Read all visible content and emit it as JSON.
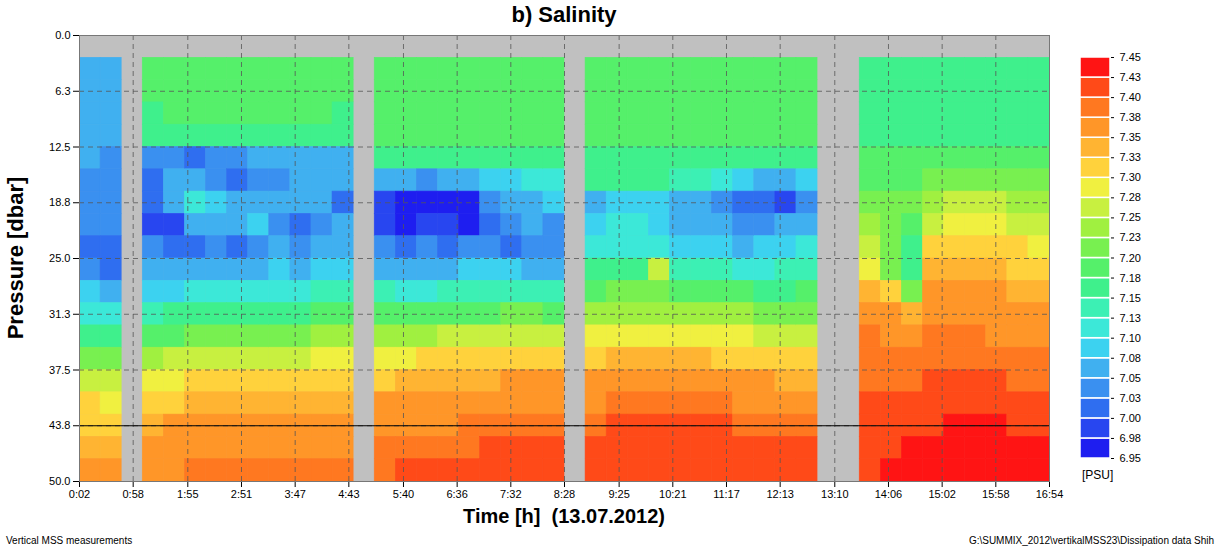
{
  "chart_data": {
    "type": "heatmap",
    "title": "b) Salinity",
    "x_label": "Time [h]  (13.07.2012)",
    "y_label": "Pressure [dbar]",
    "xlim": [
      2,
      1014
    ],
    "xticks": [
      {
        "value": 2,
        "label": "0:02"
      },
      {
        "value": 58,
        "label": "0:58"
      },
      {
        "value": 115,
        "label": "1:55"
      },
      {
        "value": 171,
        "label": "2:51"
      },
      {
        "value": 227,
        "label": "3:47"
      },
      {
        "value": 283,
        "label": "4:43"
      },
      {
        "value": 340,
        "label": "5:40"
      },
      {
        "value": 396,
        "label": "6:36"
      },
      {
        "value": 452,
        "label": "7:32"
      },
      {
        "value": 508,
        "label": "8:28"
      },
      {
        "value": 565,
        "label": "9:25"
      },
      {
        "value": 621,
        "label": "10:21"
      },
      {
        "value": 677,
        "label": "11:17"
      },
      {
        "value": 733,
        "label": "12:13"
      },
      {
        "value": 790,
        "label": "13:10"
      },
      {
        "value": 846,
        "label": "14:06"
      },
      {
        "value": 902,
        "label": "15:02"
      },
      {
        "value": 958,
        "label": "15:58"
      },
      {
        "value": 1014,
        "label": "16:54"
      }
    ],
    "ylim": [
      0,
      50
    ],
    "yticks": [
      {
        "value": 0,
        "label": "0.0"
      },
      {
        "value": 6.25,
        "label": "6.3"
      },
      12.5,
      {
        "value": 18.75,
        "label": "18.8"
      },
      {
        "value": 25,
        "label": "25.0"
      },
      {
        "value": 31.25,
        "label": "31.3"
      },
      37.5,
      {
        "value": 43.75,
        "label": "43.8"
      },
      {
        "value": 50,
        "label": "50.0"
      }
    ],
    "grid": true,
    "reference_line": 43.75,
    "cells": {
      "x_edges": [
        2,
        24,
        46,
        68,
        90,
        112,
        134,
        156,
        178,
        200,
        222,
        244,
        266,
        288,
        310,
        332,
        354,
        376,
        398,
        420,
        442,
        464,
        486,
        508,
        530,
        552,
        574,
        596,
        618,
        640,
        662,
        684,
        706,
        728,
        750,
        772,
        794,
        816,
        838,
        860,
        882,
        904,
        926,
        948,
        970,
        992,
        1014
      ],
      "y_edges": [
        2.5,
        5,
        7.5,
        10,
        12.5,
        15,
        17.5,
        20,
        22.5,
        25,
        27.5,
        30,
        32.5,
        35,
        37.5,
        40,
        42.5,
        45,
        47.5,
        50
      ],
      "values": [
        [
          7.07,
          7.07,
          7.07,
          7.06,
          7.05,
          7.04,
          7.04,
          7.03,
          7.02,
          7.03,
          7.08,
          7.12,
          7.16,
          7.22,
          7.27,
          7.3,
          7.32,
          7.34,
          7.36
        ],
        [
          7.06,
          7.06,
          7.06,
          7.05,
          7.04,
          7.03,
          7.04,
          7.03,
          7.01,
          7.0,
          7.06,
          7.11,
          7.15,
          7.21,
          7.26,
          7.29,
          7.31,
          7.33,
          7.35
        ],
        null,
        [
          7.18,
          7.18,
          7.17,
          7.15,
          7.04,
          7.02,
          7.0,
          6.98,
          7.03,
          7.06,
          7.09,
          7.14,
          7.19,
          7.24,
          7.29,
          7.32,
          7.34,
          7.36,
          7.37
        ],
        [
          7.18,
          7.18,
          7.18,
          7.16,
          7.03,
          7.06,
          7.07,
          6.99,
          7.02,
          7.05,
          7.09,
          7.15,
          7.19,
          7.25,
          7.29,
          7.32,
          7.35,
          7.36,
          7.37
        ],
        [
          7.19,
          7.18,
          7.18,
          7.16,
          7.02,
          7.05,
          7.1,
          7.05,
          7.02,
          7.06,
          7.1,
          7.15,
          7.2,
          7.26,
          7.3,
          7.33,
          7.35,
          7.36,
          7.38
        ],
        [
          7.19,
          7.19,
          7.18,
          7.17,
          7.03,
          7.03,
          7.08,
          7.06,
          7.03,
          7.07,
          7.11,
          7.16,
          7.21,
          7.26,
          7.3,
          7.33,
          7.35,
          7.37,
          7.38
        ],
        [
          7.19,
          7.19,
          7.18,
          7.17,
          7.04,
          7.02,
          7.06,
          7.05,
          7.02,
          7.06,
          7.11,
          7.16,
          7.21,
          7.26,
          7.3,
          7.33,
          7.35,
          7.37,
          7.38
        ],
        [
          7.19,
          7.18,
          7.18,
          7.16,
          7.05,
          7.03,
          7.07,
          7.08,
          7.04,
          7.07,
          7.12,
          7.17,
          7.21,
          7.27,
          7.31,
          7.33,
          7.35,
          7.37,
          7.38
        ],
        [
          7.19,
          7.19,
          7.18,
          7.17,
          7.06,
          7.04,
          7.06,
          7.03,
          7.05,
          7.08,
          7.12,
          7.17,
          7.22,
          7.27,
          7.31,
          7.34,
          7.35,
          7.37,
          7.38
        ],
        [
          7.19,
          7.19,
          7.18,
          7.17,
          7.06,
          7.05,
          7.07,
          7.0,
          7.03,
          7.07,
          7.12,
          7.17,
          7.22,
          7.27,
          7.31,
          7.34,
          7.36,
          7.37,
          7.38
        ],
        [
          7.18,
          7.18,
          7.18,
          7.16,
          7.06,
          7.06,
          7.05,
          7.04,
          7.05,
          7.08,
          7.13,
          7.18,
          7.23,
          7.28,
          7.31,
          7.34,
          7.36,
          7.37,
          7.38
        ],
        [
          7.18,
          7.18,
          7.17,
          7.16,
          7.07,
          7.05,
          7.02,
          7.05,
          7.06,
          7.09,
          7.13,
          7.18,
          7.23,
          7.28,
          7.32,
          7.34,
          7.36,
          7.37,
          7.38
        ],
        null,
        [
          7.19,
          7.19,
          7.19,
          7.18,
          7.16,
          7.06,
          6.98,
          6.99,
          7.03,
          7.07,
          7.13,
          7.18,
          7.24,
          7.29,
          7.32,
          7.35,
          7.36,
          7.38,
          7.39
        ],
        [
          7.19,
          7.19,
          7.19,
          7.18,
          7.15,
          7.05,
          6.97,
          6.97,
          7.02,
          7.06,
          7.12,
          7.18,
          7.24,
          7.29,
          7.33,
          7.35,
          7.37,
          7.38,
          7.4
        ],
        [
          7.19,
          7.19,
          7.19,
          7.18,
          7.15,
          7.04,
          6.96,
          6.98,
          7.03,
          7.06,
          7.12,
          7.18,
          7.24,
          7.3,
          7.33,
          7.35,
          7.37,
          7.39,
          7.4
        ],
        [
          7.19,
          7.19,
          7.19,
          7.18,
          7.16,
          7.05,
          6.97,
          6.99,
          7.02,
          7.07,
          7.13,
          7.19,
          7.25,
          7.3,
          7.33,
          7.36,
          7.37,
          7.39,
          7.41
        ],
        [
          7.19,
          7.19,
          7.19,
          7.18,
          7.16,
          7.06,
          6.96,
          6.97,
          7.04,
          7.08,
          7.14,
          7.19,
          7.25,
          7.3,
          7.34,
          7.36,
          7.38,
          7.39,
          7.41
        ],
        [
          7.19,
          7.19,
          7.19,
          7.18,
          7.17,
          7.08,
          7.04,
          7.02,
          7.04,
          7.08,
          7.14,
          7.19,
          7.25,
          7.3,
          7.34,
          7.36,
          7.38,
          7.4,
          7.41
        ],
        [
          7.19,
          7.19,
          7.19,
          7.18,
          7.17,
          7.09,
          7.06,
          7.03,
          7.02,
          7.08,
          7.14,
          7.2,
          7.26,
          7.31,
          7.35,
          7.37,
          7.38,
          7.4,
          7.41
        ],
        [
          7.19,
          7.19,
          7.19,
          7.18,
          7.17,
          7.1,
          7.07,
          7.05,
          7.04,
          7.07,
          7.14,
          7.2,
          7.26,
          7.31,
          7.35,
          7.37,
          7.39,
          7.4,
          7.42
        ],
        [
          7.19,
          7.19,
          7.19,
          7.18,
          7.17,
          7.1,
          7.08,
          7.04,
          7.03,
          7.06,
          7.13,
          7.19,
          7.25,
          7.31,
          7.35,
          7.37,
          7.39,
          7.41,
          7.42
        ],
        null,
        [
          7.18,
          7.18,
          7.18,
          7.18,
          7.17,
          7.16,
          7.06,
          7.09,
          7.12,
          7.15,
          7.19,
          7.23,
          7.28,
          7.32,
          7.35,
          7.37,
          7.39,
          7.41,
          7.42
        ],
        [
          7.18,
          7.18,
          7.18,
          7.18,
          7.17,
          7.16,
          7.08,
          7.1,
          7.12,
          7.16,
          7.2,
          7.24,
          7.29,
          7.33,
          7.36,
          7.38,
          7.4,
          7.41,
          7.42
        ],
        [
          7.18,
          7.18,
          7.18,
          7.18,
          7.17,
          7.15,
          7.09,
          7.1,
          7.12,
          7.16,
          7.2,
          7.24,
          7.29,
          7.33,
          7.36,
          7.38,
          7.4,
          7.41,
          7.42
        ],
        [
          7.18,
          7.18,
          7.18,
          7.18,
          7.17,
          7.15,
          7.08,
          7.08,
          7.1,
          7.25,
          7.22,
          7.24,
          7.29,
          7.33,
          7.36,
          7.38,
          7.4,
          7.41,
          7.42
        ],
        [
          7.18,
          7.18,
          7.18,
          7.18,
          7.17,
          7.14,
          7.07,
          7.06,
          7.09,
          7.14,
          7.19,
          7.24,
          7.29,
          7.33,
          7.36,
          7.38,
          7.4,
          7.41,
          7.42
        ],
        [
          7.18,
          7.18,
          7.18,
          7.18,
          7.17,
          7.13,
          7.06,
          7.05,
          7.08,
          7.13,
          7.19,
          7.24,
          7.29,
          7.33,
          7.36,
          7.38,
          7.4,
          7.41,
          7.42
        ],
        [
          7.18,
          7.18,
          7.18,
          7.18,
          7.16,
          7.1,
          7.03,
          7.05,
          7.08,
          7.13,
          7.18,
          7.23,
          7.28,
          7.32,
          7.35,
          7.38,
          7.4,
          7.41,
          7.42
        ],
        [
          7.18,
          7.18,
          7.18,
          7.18,
          7.16,
          7.08,
          7.0,
          7.04,
          7.07,
          7.12,
          7.18,
          7.23,
          7.28,
          7.32,
          7.35,
          7.37,
          7.39,
          7.41,
          7.42
        ],
        [
          7.18,
          7.18,
          7.18,
          7.18,
          7.16,
          7.07,
          7.01,
          7.04,
          7.08,
          7.12,
          7.17,
          7.22,
          7.27,
          7.31,
          7.35,
          7.37,
          7.39,
          7.4,
          7.41
        ],
        [
          7.18,
          7.18,
          7.18,
          7.18,
          7.15,
          7.05,
          6.99,
          7.05,
          7.09,
          7.13,
          7.17,
          7.22,
          7.27,
          7.31,
          7.34,
          7.37,
          7.39,
          7.4,
          7.41
        ],
        [
          7.18,
          7.18,
          7.18,
          7.18,
          7.16,
          7.08,
          7.04,
          7.07,
          7.1,
          7.14,
          7.18,
          7.22,
          7.27,
          7.31,
          7.34,
          7.36,
          7.38,
          7.4,
          7.41
        ],
        null,
        null,
        [
          7.17,
          7.17,
          7.17,
          7.17,
          7.18,
          7.19,
          7.21,
          7.23,
          7.25,
          7.28,
          7.33,
          7.36,
          7.38,
          7.39,
          7.39,
          7.4,
          7.41,
          7.42,
          7.42
        ],
        [
          7.17,
          7.17,
          7.17,
          7.17,
          7.18,
          7.19,
          7.21,
          7.22,
          7.21,
          7.21,
          7.3,
          7.35,
          7.37,
          7.38,
          7.39,
          7.4,
          7.41,
          7.42,
          7.43
        ],
        [
          7.17,
          7.17,
          7.17,
          7.17,
          7.18,
          7.19,
          7.2,
          7.19,
          7.17,
          7.15,
          7.2,
          7.34,
          7.37,
          7.38,
          7.39,
          7.41,
          7.42,
          7.43,
          7.43
        ],
        [
          7.16,
          7.16,
          7.16,
          7.17,
          7.18,
          7.2,
          7.23,
          7.27,
          7.3,
          7.33,
          7.35,
          7.37,
          7.38,
          7.39,
          7.4,
          7.41,
          7.42,
          7.43,
          7.44
        ],
        [
          7.15,
          7.16,
          7.16,
          7.17,
          7.18,
          7.21,
          7.25,
          7.28,
          7.32,
          7.34,
          7.36,
          7.37,
          7.38,
          7.39,
          7.4,
          7.42,
          7.43,
          7.44,
          7.45
        ],
        [
          7.16,
          7.16,
          7.17,
          7.17,
          7.19,
          7.22,
          7.26,
          7.29,
          7.32,
          7.34,
          7.36,
          7.37,
          7.38,
          7.39,
          7.4,
          7.42,
          7.43,
          7.44,
          7.44
        ],
        [
          7.16,
          7.16,
          7.17,
          7.17,
          7.19,
          7.22,
          7.25,
          7.28,
          7.31,
          7.33,
          7.35,
          7.36,
          7.37,
          7.38,
          7.4,
          7.41,
          7.43,
          7.44,
          7.44
        ],
        [
          7.16,
          7.16,
          7.17,
          7.17,
          7.19,
          7.21,
          7.24,
          7.27,
          7.3,
          7.32,
          7.34,
          7.35,
          7.37,
          7.38,
          7.39,
          7.41,
          7.42,
          7.43,
          7.44
        ],
        [
          7.16,
          7.16,
          7.17,
          7.17,
          7.18,
          7.2,
          7.23,
          7.26,
          7.29,
          7.31,
          7.33,
          7.35,
          7.36,
          7.38,
          7.39,
          7.41,
          7.42,
          7.43,
          7.44
        ]
      ]
    },
    "colorbar": {
      "label": "[PSU]",
      "range": [
        6.95,
        7.45
      ],
      "ticks": [
        6.95,
        {
          "value": 6.975,
          "label": "6.98"
        },
        {
          "value": 7,
          "label": "7.00"
        },
        {
          "value": 7.025,
          "label": "7.03"
        },
        7.05,
        {
          "value": 7.075,
          "label": "7.08"
        },
        {
          "value": 7.1,
          "label": "7.10"
        },
        {
          "value": 7.125,
          "label": "7.13"
        },
        7.15,
        {
          "value": 7.175,
          "label": "7.18"
        },
        {
          "value": 7.2,
          "label": "7.20"
        },
        {
          "value": 7.225,
          "label": "7.23"
        },
        7.25,
        {
          "value": 7.275,
          "label": "7.28"
        },
        {
          "value": 7.3,
          "label": "7.30"
        },
        {
          "value": 7.325,
          "label": "7.33"
        },
        7.35,
        {
          "value": 7.375,
          "label": "7.38"
        },
        {
          "value": 7.4,
          "label": "7.40"
        },
        {
          "value": 7.425,
          "label": "7.43"
        },
        7.45
      ],
      "colors": [
        "#1e1ef0",
        "#2846f0",
        "#2f6ef0",
        "#3a90f0",
        "#40b0f0",
        "#3cd2f0",
        "#3ce8d8",
        "#3cf0b4",
        "#3ff08c",
        "#55f06a",
        "#78f050",
        "#a0f040",
        "#c8f040",
        "#f0f040",
        "#ffd23c",
        "#ffb432",
        "#ff9628",
        "#ff7820",
        "#ff4a18",
        "#ff1414"
      ]
    },
    "annotations": [
      "Vertical MSS measurements",
      "G:\\SUMMIX_2012\\vertikalMSS23\\Dissipation data Shih"
    ]
  }
}
